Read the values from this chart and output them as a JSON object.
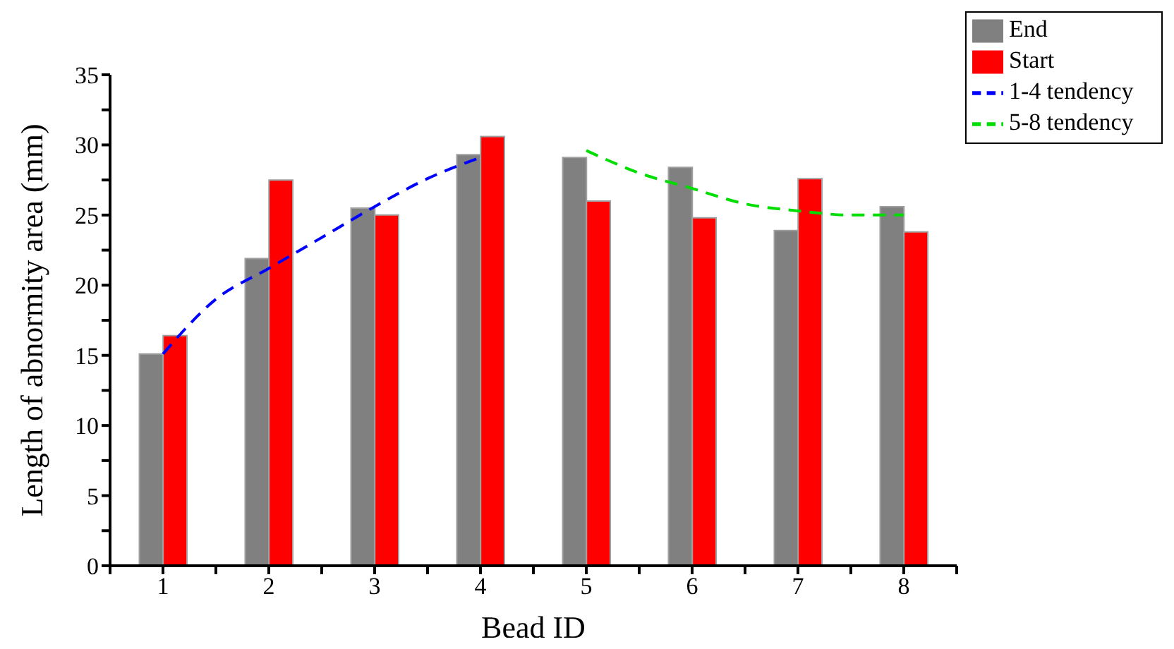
{
  "chart_data": {
    "type": "bar",
    "xlabel": "Bead ID",
    "ylabel": "Length of abnormity area (mm)",
    "x": [
      1,
      2,
      3,
      4,
      5,
      6,
      7,
      8
    ],
    "series": [
      {
        "name": "End",
        "color": "#808080",
        "values": [
          15.1,
          21.9,
          25.5,
          29.3,
          29.1,
          28.4,
          23.9,
          25.6
        ]
      },
      {
        "name": "Start",
        "color": "#ff0000",
        "values": [
          16.4,
          27.5,
          25.0,
          30.6,
          26.0,
          24.8,
          27.6,
          23.8
        ]
      },
      {
        "name": "1-4 tendency",
        "type": "line",
        "color": "#0000ff",
        "line_style": "dashed",
        "x": [
          1,
          1.5,
          2,
          2.5,
          3,
          3.5,
          4
        ],
        "values": [
          15.1,
          19.0,
          21.2,
          23.4,
          25.6,
          27.6,
          29.1
        ]
      },
      {
        "name": "5-8 tendency",
        "type": "line",
        "color": "#00dd00",
        "line_style": "dashed",
        "x": [
          5,
          5.5,
          6,
          6.5,
          7,
          7.5,
          8
        ],
        "values": [
          29.6,
          28.0,
          26.9,
          25.8,
          25.3,
          25.0,
          25.0
        ]
      }
    ],
    "xlim": [
      0.5,
      8.5
    ],
    "xticks": [
      {
        "value": 0.5,
        "label": null
      },
      1,
      {
        "value": 1.5,
        "label": null
      },
      2,
      {
        "value": 2.5,
        "label": null
      },
      3,
      {
        "value": 3.5,
        "label": null
      },
      4,
      {
        "value": 4.5,
        "label": null
      },
      5,
      {
        "value": 5.5,
        "label": null
      },
      6,
      {
        "value": 6.5,
        "label": null
      },
      7,
      {
        "value": 7.5,
        "label": null
      },
      8,
      {
        "value": 8.5,
        "label": null
      }
    ],
    "ylim": [
      0,
      35
    ],
    "yticks": [
      0,
      {
        "value": 2.5,
        "label": null
      },
      5,
      {
        "value": 7.5,
        "label": null
      },
      10,
      {
        "value": 12.5,
        "label": null
      },
      15,
      {
        "value": 17.5,
        "label": null
      },
      20,
      {
        "value": 22.5,
        "label": null
      },
      25,
      {
        "value": 27.5,
        "label": null
      },
      30,
      {
        "value": 32.5,
        "label": null
      },
      35
    ],
    "grid": false,
    "legend": "top right",
    "marker": "none"
  }
}
